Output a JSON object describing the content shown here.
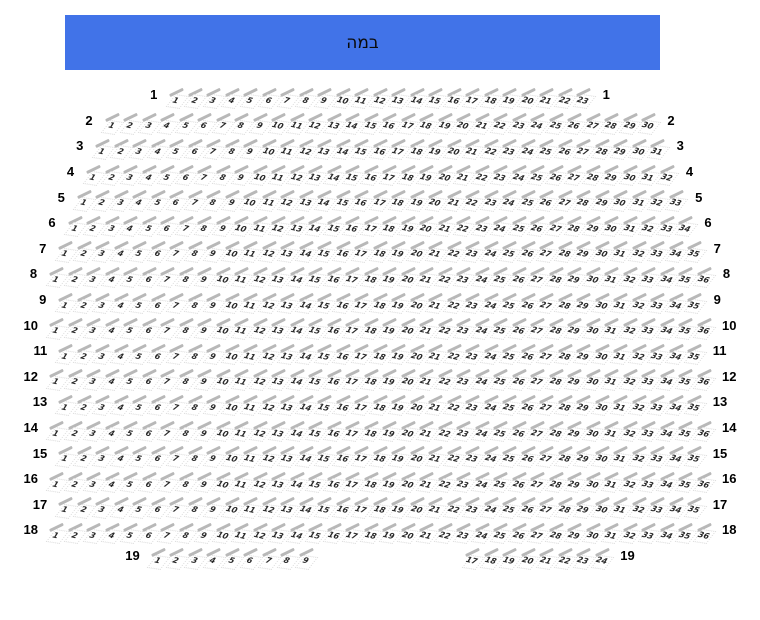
{
  "stage": {
    "label": "במה"
  },
  "colors": {
    "stage_bg": "#4173E8",
    "stage_text": "#0a0a0a",
    "row_label": "#000000",
    "seat_number": "#2a2a2a",
    "seat_back": "#b8b8b8",
    "seat_outline": "#dcdcdc"
  },
  "rows": [
    {
      "label": "1",
      "groups": [
        {
          "seats": [
            1,
            2,
            3,
            4,
            5,
            6,
            7,
            8,
            9,
            10,
            11,
            12,
            13,
            14,
            15,
            16,
            17,
            18,
            19,
            20,
            21,
            22,
            23
          ]
        }
      ]
    },
    {
      "label": "2",
      "groups": [
        {
          "seats": [
            1,
            2,
            3,
            4,
            5,
            6,
            7,
            8,
            9,
            10,
            11,
            12,
            13,
            14,
            15,
            16,
            17,
            18,
            19,
            20,
            21,
            22,
            23,
            24,
            25,
            26,
            27,
            28,
            29,
            30
          ]
        }
      ]
    },
    {
      "label": "3",
      "groups": [
        {
          "seats": [
            1,
            2,
            3,
            4,
            5,
            6,
            7,
            8,
            9,
            10,
            11,
            12,
            13,
            14,
            15,
            16,
            17,
            18,
            19,
            20,
            21,
            22,
            23,
            24,
            25,
            26,
            27,
            28,
            29,
            30,
            31
          ]
        }
      ]
    },
    {
      "label": "4",
      "groups": [
        {
          "seats": [
            1,
            2,
            3,
            4,
            5,
            6,
            7,
            8,
            9,
            10,
            11,
            12,
            13,
            14,
            15,
            16,
            17,
            18,
            19,
            20,
            21,
            22,
            23,
            24,
            25,
            26,
            27,
            28,
            29,
            30,
            31,
            32
          ]
        }
      ]
    },
    {
      "label": "5",
      "groups": [
        {
          "seats": [
            1,
            2,
            3,
            4,
            5,
            6,
            7,
            8,
            9,
            10,
            11,
            12,
            13,
            14,
            15,
            16,
            17,
            18,
            19,
            20,
            21,
            22,
            23,
            24,
            25,
            26,
            27,
            28,
            29,
            30,
            31,
            32,
            33
          ]
        }
      ]
    },
    {
      "label": "6",
      "groups": [
        {
          "seats": [
            1,
            2,
            3,
            4,
            5,
            6,
            7,
            8,
            9,
            10,
            11,
            12,
            13,
            14,
            15,
            16,
            17,
            18,
            19,
            20,
            21,
            22,
            23,
            24,
            25,
            26,
            27,
            28,
            29,
            30,
            31,
            32,
            33,
            34
          ]
        }
      ]
    },
    {
      "label": "7",
      "groups": [
        {
          "seats": [
            1,
            2,
            3,
            4,
            5,
            6,
            7,
            8,
            9,
            10,
            11,
            12,
            13,
            14,
            15,
            16,
            17,
            18,
            19,
            20,
            21,
            22,
            23,
            24,
            25,
            26,
            27,
            28,
            29,
            30,
            31,
            32,
            33,
            34,
            35
          ]
        }
      ]
    },
    {
      "label": "8",
      "groups": [
        {
          "seats": [
            1,
            2,
            3,
            4,
            5,
            6,
            7,
            8,
            9,
            10,
            11,
            12,
            13,
            14,
            15,
            16,
            17,
            18,
            19,
            20,
            21,
            22,
            23,
            24,
            25,
            26,
            27,
            28,
            29,
            30,
            31,
            32,
            33,
            34,
            35,
            36
          ]
        }
      ]
    },
    {
      "label": "9",
      "groups": [
        {
          "seats": [
            1,
            2,
            3,
            4,
            5,
            6,
            7,
            8,
            9,
            10,
            11,
            12,
            13,
            14,
            15,
            16,
            17,
            18,
            19,
            20,
            21,
            22,
            23,
            24,
            25,
            26,
            27,
            28,
            29,
            30,
            31,
            32,
            33,
            34,
            35
          ]
        }
      ]
    },
    {
      "label": "10",
      "groups": [
        {
          "seats": [
            1,
            2,
            3,
            4,
            5,
            6,
            7,
            8,
            9,
            10,
            11,
            12,
            13,
            14,
            15,
            16,
            17,
            18,
            19,
            20,
            21,
            22,
            23,
            24,
            25,
            26,
            27,
            28,
            29,
            30,
            31,
            32,
            33,
            34,
            35,
            36
          ]
        }
      ]
    },
    {
      "label": "11",
      "groups": [
        {
          "seats": [
            1,
            2,
            3,
            4,
            5,
            6,
            7,
            8,
            9,
            10,
            11,
            12,
            13,
            14,
            15,
            16,
            17,
            18,
            19,
            20,
            21,
            22,
            23,
            24,
            25,
            26,
            27,
            28,
            29,
            30,
            31,
            32,
            33,
            34,
            35
          ]
        }
      ]
    },
    {
      "label": "12",
      "groups": [
        {
          "seats": [
            1,
            2,
            3,
            4,
            5,
            6,
            7,
            8,
            9,
            10,
            11,
            12,
            13,
            14,
            15,
            16,
            17,
            18,
            19,
            20,
            21,
            22,
            23,
            24,
            25,
            26,
            27,
            28,
            29,
            30,
            31,
            32,
            33,
            34,
            35,
            36
          ]
        }
      ]
    },
    {
      "label": "13",
      "groups": [
        {
          "seats": [
            1,
            2,
            3,
            4,
            5,
            6,
            7,
            8,
            9,
            10,
            11,
            12,
            13,
            14,
            15,
            16,
            17,
            18,
            19,
            20,
            21,
            22,
            23,
            24,
            25,
            26,
            27,
            28,
            29,
            30,
            31,
            32,
            33,
            34,
            35
          ]
        }
      ]
    },
    {
      "label": "14",
      "groups": [
        {
          "seats": [
            1,
            2,
            3,
            4,
            5,
            6,
            7,
            8,
            9,
            10,
            11,
            12,
            13,
            14,
            15,
            16,
            17,
            18,
            19,
            20,
            21,
            22,
            23,
            24,
            25,
            26,
            27,
            28,
            29,
            30,
            31,
            32,
            33,
            34,
            35,
            36
          ]
        }
      ]
    },
    {
      "label": "15",
      "groups": [
        {
          "seats": [
            1,
            2,
            3,
            4,
            5,
            6,
            7,
            8,
            9,
            10,
            11,
            12,
            13,
            14,
            15,
            16,
            17,
            18,
            19,
            20,
            21,
            22,
            23,
            24,
            25,
            26,
            27,
            28,
            29,
            30,
            31,
            32,
            33,
            34,
            35
          ]
        }
      ]
    },
    {
      "label": "16",
      "groups": [
        {
          "seats": [
            1,
            2,
            3,
            4,
            5,
            6,
            7,
            8,
            9,
            10,
            11,
            12,
            13,
            14,
            15,
            16,
            17,
            18,
            19,
            20,
            21,
            22,
            23,
            24,
            25,
            26,
            27,
            28,
            29,
            30,
            31,
            32,
            33,
            34,
            35,
            36
          ]
        }
      ]
    },
    {
      "label": "17",
      "groups": [
        {
          "seats": [
            1,
            2,
            3,
            4,
            5,
            6,
            7,
            8,
            9,
            10,
            11,
            12,
            13,
            14,
            15,
            16,
            17,
            18,
            19,
            20,
            21,
            22,
            23,
            24,
            25,
            26,
            27,
            28,
            29,
            30,
            31,
            32,
            33,
            34,
            35
          ]
        }
      ]
    },
    {
      "label": "18",
      "groups": [
        {
          "seats": [
            1,
            2,
            3,
            4,
            5,
            6,
            7,
            8,
            9,
            10,
            11,
            12,
            13,
            14,
            15,
            16,
            17,
            18,
            19,
            20,
            21,
            22,
            23,
            24,
            25,
            26,
            27,
            28,
            29,
            30,
            31,
            32,
            33,
            34,
            35,
            36
          ]
        }
      ]
    },
    {
      "label": "19",
      "groups": [
        {
          "seats": [
            1,
            2,
            3,
            4,
            5,
            6,
            7,
            8,
            9
          ]
        },
        {
          "seats": [
            17,
            18,
            19,
            20,
            21,
            22,
            23,
            24
          ]
        }
      ]
    }
  ]
}
